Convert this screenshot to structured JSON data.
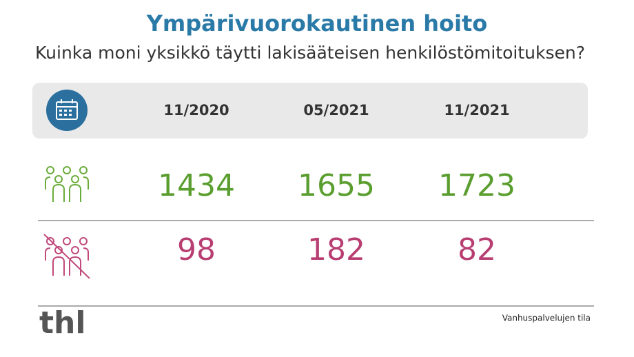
{
  "header": {
    "title": "Ympärivuorokautinen hoito",
    "subtitle": "Kuinka moni yksikkö täytti lakisääteisen henkilöstömitoituksen?"
  },
  "table": {
    "columns": [
      "11/2020",
      "05/2021",
      "11/2021"
    ],
    "rows": [
      [
        1434,
        1655,
        1723
      ],
      [
        98,
        182,
        82
      ]
    ]
  },
  "footer": {
    "logo": "thl",
    "source": "Vanhuspalvelujen tila"
  }
}
